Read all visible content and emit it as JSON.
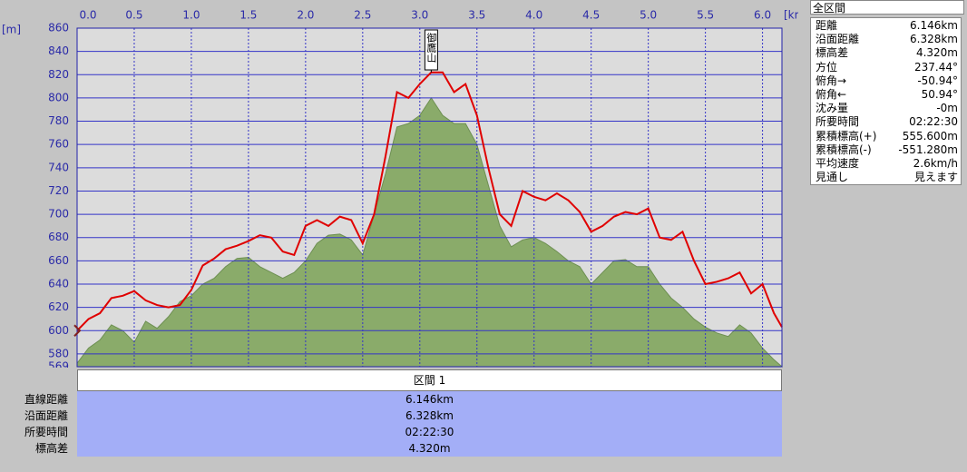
{
  "chart_data": {
    "type": "profile",
    "x_label": "[km]",
    "y_label": "[m]",
    "annotation": "御鷹山",
    "x": [
      0,
      0.1,
      0.2,
      0.3,
      0.4,
      0.5,
      0.6,
      0.7,
      0.8,
      0.9,
      1.0,
      1.1,
      1.2,
      1.3,
      1.4,
      1.5,
      1.6,
      1.7,
      1.8,
      1.9,
      2.0,
      2.1,
      2.2,
      2.3,
      2.4,
      2.5,
      2.6,
      2.7,
      2.8,
      2.9,
      3.0,
      3.1,
      3.2,
      3.3,
      3.4,
      3.5,
      3.6,
      3.7,
      3.8,
      3.9,
      4.0,
      4.1,
      4.2,
      4.3,
      4.4,
      4.5,
      4.6,
      4.7,
      4.8,
      4.9,
      5.0,
      5.1,
      5.2,
      5.3,
      5.4,
      5.5,
      5.6,
      5.7,
      5.8,
      5.9,
      6.0,
      6.1,
      6.17
    ],
    "series": [
      {
        "style": "area",
        "color": "#8aab6a",
        "values": [
          572,
          585,
          592,
          605,
          600,
          590,
          608,
          602,
          612,
          625,
          630,
          640,
          645,
          655,
          662,
          663,
          655,
          650,
          645,
          650,
          660,
          675,
          682,
          683,
          678,
          665,
          700,
          735,
          775,
          778,
          785,
          800,
          785,
          778,
          778,
          760,
          725,
          690,
          672,
          678,
          680,
          675,
          668,
          660,
          655,
          640,
          650,
          660,
          661,
          655,
          655,
          640,
          628,
          620,
          610,
          603,
          598,
          595,
          605,
          598,
          585,
          575,
          569
        ]
      },
      {
        "style": "line",
        "color": "#e00000",
        "values": [
          600,
          610,
          615,
          628,
          630,
          634,
          626,
          622,
          620,
          622,
          635,
          656,
          662,
          670,
          673,
          677,
          682,
          680,
          668,
          665,
          690,
          695,
          690,
          698,
          695,
          675,
          700,
          750,
          805,
          800,
          812,
          822,
          822,
          805,
          812,
          785,
          740,
          700,
          690,
          720,
          715,
          712,
          718,
          712,
          702,
          685,
          690,
          698,
          702,
          700,
          705,
          680,
          678,
          685,
          660,
          640,
          642,
          645,
          650,
          632,
          640,
          615,
          603
        ]
      }
    ],
    "xlim": [
      0,
      6.17
    ],
    "xticks": [
      {
        "value": 0,
        "label": "0.0"
      },
      0.5,
      {
        "value": 1,
        "label": "1.0"
      },
      1.5,
      {
        "value": 2,
        "label": "2.0"
      },
      2.5,
      {
        "value": 3,
        "label": "3.0"
      },
      3.5,
      {
        "value": 4,
        "label": "4.0"
      },
      4.5,
      {
        "value": 5,
        "label": "5.0"
      },
      5.5,
      {
        "value": 6,
        "label": "6.0"
      }
    ],
    "ylim": [
      569,
      860
    ],
    "yticks": [
      569,
      580,
      600,
      620,
      640,
      660,
      680,
      700,
      720,
      740,
      760,
      780,
      800,
      820,
      840,
      860
    ],
    "grid": true
  },
  "section_table": {
    "header": "区間 1",
    "rows": [
      [
        "直線距離",
        "6.146km"
      ],
      [
        "沿面距離",
        "6.328km"
      ],
      [
        "所要時間",
        "02:22:30"
      ],
      [
        "標高差",
        "4.320m"
      ]
    ]
  },
  "summary_panel": {
    "title": "全区間",
    "rows": [
      [
        "距離",
        "6.146km"
      ],
      [
        "沿面距離",
        "6.328km"
      ],
      [
        "標高差",
        "4.320m"
      ],
      [
        "方位",
        "237.44°"
      ],
      [
        "俯角→",
        "-50.94°"
      ],
      [
        "俯角←",
        "50.94°"
      ],
      [
        "沈み量",
        "-0m"
      ],
      [
        "所要時間",
        "02:22:30"
      ],
      [
        "累積標高(+)",
        "555.600m"
      ],
      [
        "累積標高(-)",
        "-551.280m"
      ],
      [
        "平均速度",
        "2.6km/h"
      ],
      [
        "見通し",
        "見えます"
      ]
    ]
  }
}
